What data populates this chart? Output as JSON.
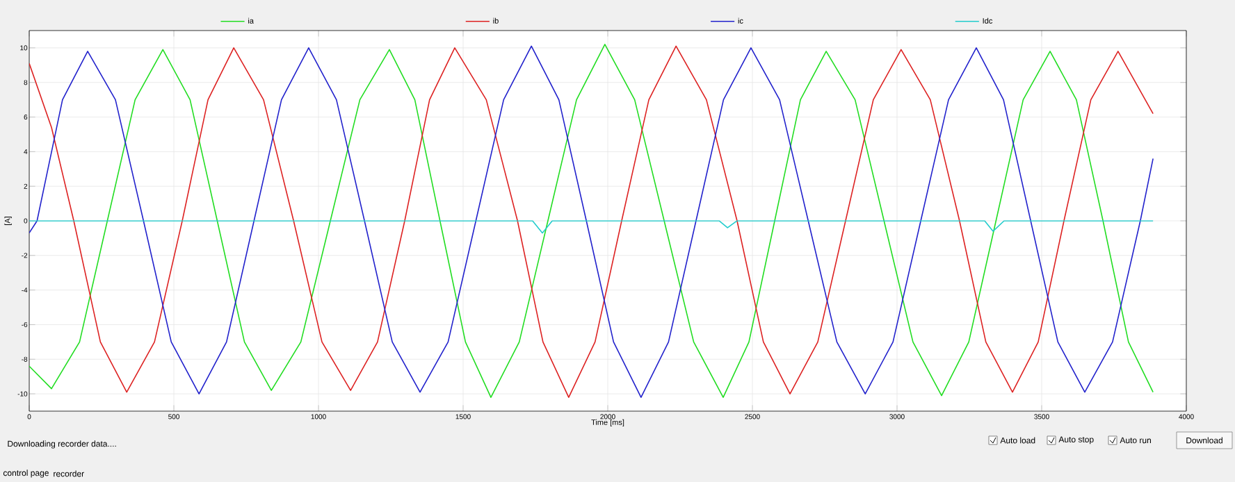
{
  "chart_data": {
    "type": "line",
    "xlabel": "Time [ms]",
    "ylabel": "[A]",
    "xlim": [
      0,
      4000
    ],
    "ylim": [
      -11,
      11
    ],
    "xticks": [
      0,
      500,
      1000,
      1500,
      2000,
      2500,
      3000,
      3500,
      4000
    ],
    "yticks": [
      -10,
      -8,
      -6,
      -4,
      -2,
      0,
      2,
      4,
      6,
      8,
      10
    ],
    "grid": true,
    "legend": "top",
    "marker": "none",
    "line_style": "solid",
    "series": [
      {
        "name": "ia",
        "color": "#22dd22",
        "x": [
          0,
          77,
          174,
          270,
          366,
          462,
          556,
          650,
          744,
          837,
          939,
          1041,
          1143,
          1245,
          1333,
          1420,
          1508,
          1596,
          1694,
          1793,
          1892,
          1990,
          2093,
          2195,
          2297,
          2399,
          2488,
          2577,
          2666,
          2755,
          2855,
          2955,
          3055,
          3154,
          3248,
          3342,
          3436,
          3529,
          3620,
          3712,
          3800,
          3885
        ],
        "values": [
          -8.4,
          -9.7,
          -7,
          0,
          7,
          9.9,
          7,
          0,
          -7,
          -9.8,
          -7,
          0,
          7,
          9.9,
          7,
          0,
          -7,
          -10.2,
          -7,
          0,
          7,
          10.2,
          7,
          0,
          -7,
          -10.2,
          -7,
          0,
          7,
          9.8,
          7,
          0,
          -7,
          -10.1,
          -7,
          0,
          7,
          9.8,
          7,
          0,
          -7,
          -9.9
        ]
      },
      {
        "name": "ib",
        "color": "#dd2222",
        "x": [
          0,
          77,
          154,
          246,
          337,
          433,
          529,
          618,
          707,
          810,
          914,
          1012,
          1111,
          1204,
          1298,
          1384,
          1471,
          1580,
          1688,
          1776,
          1865,
          1956,
          2048,
          2142,
          2236,
          2341,
          2447,
          2538,
          2630,
          2726,
          2822,
          2918,
          3014,
          3115,
          3216,
          3307,
          3399,
          3488,
          3577,
          3670,
          3764,
          3885
        ],
        "values": [
          9.1,
          5.4,
          0,
          -7,
          -9.9,
          -7,
          0,
          7,
          10,
          7,
          0,
          -7,
          -9.8,
          -7,
          0,
          7,
          10,
          7,
          0,
          -7,
          -10.2,
          -7,
          0,
          7,
          10.1,
          7,
          0,
          -7,
          -10,
          -7,
          0,
          7,
          9.9,
          7,
          0,
          -7,
          -9.9,
          -7,
          0,
          7,
          9.8,
          6.2
        ]
      },
      {
        "name": "ic",
        "color": "#2222cc",
        "x": [
          0,
          27,
          115,
          202,
          298,
          395,
          491,
          587,
          682,
          777,
          872,
          966,
          1062,
          1159,
          1255,
          1351,
          1448,
          1544,
          1640,
          1736,
          1831,
          1926,
          2020,
          2115,
          2210,
          2305,
          2400,
          2495,
          2594,
          2693,
          2792,
          2890,
          2986,
          3082,
          3178,
          3274,
          3368,
          3462,
          3556,
          3649,
          3745,
          3841,
          3885
        ],
        "values": [
          -0.7,
          0,
          7,
          9.8,
          7,
          0,
          -7,
          -10,
          -7,
          0,
          7,
          10,
          7,
          0,
          -7,
          -9.9,
          -7,
          0,
          7,
          10.1,
          7,
          0,
          -7,
          -10.2,
          -7,
          0,
          7,
          10,
          7,
          0,
          -7,
          -10,
          -7,
          0,
          7,
          10,
          7,
          0,
          -7,
          -9.9,
          -7,
          0,
          3.6
        ]
      },
      {
        "name": "Idc",
        "color": "#22cccc",
        "x": [
          0,
          1740,
          1774,
          1808,
          2385,
          2414,
          2447,
          3303,
          3332,
          3370,
          3885
        ],
        "values": [
          0,
          0,
          -0.7,
          0,
          0,
          -0.4,
          0,
          0,
          -0.6,
          0,
          0
        ]
      }
    ],
    "annotations": [
      "Downloading recorder data....",
      "Auto load",
      "Auto stop",
      "Auto run",
      "Download",
      "control page",
      "recorder"
    ]
  }
}
